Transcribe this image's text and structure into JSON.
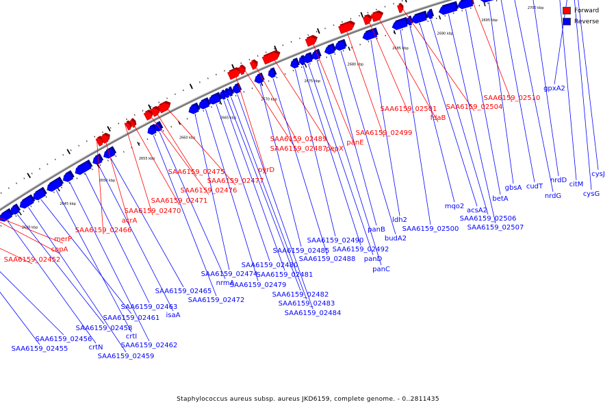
{
  "colors": {
    "forward": "#ff0000",
    "reverse": "#0000ff",
    "backbone": "#7a7a7a"
  },
  "legend": [
    {
      "label": "Forward",
      "color": "#ff0000"
    },
    {
      "label": "Reverse",
      "color": "#0000ff"
    }
  ],
  "caption": "Staphylococcus aureus subsp. aureus JKD6159, complete genome. - 0..2811435",
  "ticks": [
    "2635 kbp",
    "2640 kbp",
    "2645 kbp",
    "2650 kbp",
    "2655 kbp",
    "2660 kbp",
    "2665 kbp",
    "2670 kbp",
    "2675 kbp",
    "2680 kbp",
    "2685 kbp",
    "2690 kbp",
    "2695 kbp",
    "2700 kbp",
    "2705 kbp"
  ],
  "genes": [
    {
      "name": "SAA6159_02452",
      "strand": "forward"
    },
    {
      "name": "copA",
      "strand": "forward"
    },
    {
      "name": "merP",
      "strand": "forward"
    },
    {
      "name": "SAA6159_02466",
      "strand": "forward"
    },
    {
      "name": "acrA",
      "strand": "forward"
    },
    {
      "name": "SAA6159_02470",
      "strand": "forward"
    },
    {
      "name": "SAA6159_02471",
      "strand": "forward"
    },
    {
      "name": "SAA6159_02476",
      "strand": "forward"
    },
    {
      "name": "SAA6159_02475",
      "strand": "forward"
    },
    {
      "name": "SAA6159_02477",
      "strand": "forward"
    },
    {
      "name": "pyrD",
      "strand": "forward"
    },
    {
      "name": "SAA6159_02487",
      "strand": "forward"
    },
    {
      "name": "SAA6159_02489",
      "strand": "forward"
    },
    {
      "name": "pepX",
      "strand": "forward"
    },
    {
      "name": "panE",
      "strand": "forward"
    },
    {
      "name": "SAA6159_02499",
      "strand": "forward"
    },
    {
      "name": "SAA6159_02501",
      "strand": "forward"
    },
    {
      "name": "fdaB",
      "strand": "forward"
    },
    {
      "name": "SAA6159_02504",
      "strand": "forward"
    },
    {
      "name": "SAA6159_02510",
      "strand": "forward"
    },
    {
      "name": "gpxA2",
      "strand": "reverse"
    },
    {
      "name": "SAA6159_02455",
      "strand": "reverse"
    },
    {
      "name": "SAA6159_02456",
      "strand": "reverse"
    },
    {
      "name": "crtN",
      "strand": "reverse"
    },
    {
      "name": "SAA6159_02458",
      "strand": "reverse"
    },
    {
      "name": "SAA6159_02459",
      "strand": "reverse"
    },
    {
      "name": "SAA6159_02461",
      "strand": "reverse"
    },
    {
      "name": "crtI",
      "strand": "reverse"
    },
    {
      "name": "SAA6159_02462",
      "strand": "reverse"
    },
    {
      "name": "SAA6159_02463",
      "strand": "reverse"
    },
    {
      "name": "isaA",
      "strand": "reverse"
    },
    {
      "name": "SAA6159_02465",
      "strand": "reverse"
    },
    {
      "name": "SAA6159_02472",
      "strand": "reverse"
    },
    {
      "name": "nrmA",
      "strand": "reverse"
    },
    {
      "name": "SAA6159_02474",
      "strand": "reverse"
    },
    {
      "name": "SAA6159_02479",
      "strand": "reverse"
    },
    {
      "name": "SAA6159_02480",
      "strand": "reverse"
    },
    {
      "name": "SAA6159_02481",
      "strand": "reverse"
    },
    {
      "name": "SAA6159_02482",
      "strand": "reverse"
    },
    {
      "name": "SAA6159_02483",
      "strand": "reverse"
    },
    {
      "name": "SAA6159_02484",
      "strand": "reverse"
    },
    {
      "name": "SAA6159_02485",
      "strand": "reverse"
    },
    {
      "name": "SAA6159_02488",
      "strand": "reverse"
    },
    {
      "name": "SAA6159_02490",
      "strand": "reverse"
    },
    {
      "name": "SAA6159_02492",
      "strand": "reverse"
    },
    {
      "name": "panD",
      "strand": "reverse"
    },
    {
      "name": "panC",
      "strand": "reverse"
    },
    {
      "name": "panB",
      "strand": "reverse"
    },
    {
      "name": "budA2",
      "strand": "reverse"
    },
    {
      "name": "ldh2",
      "strand": "reverse"
    },
    {
      "name": "SAA6159_02500",
      "strand": "reverse"
    },
    {
      "name": "mqo2",
      "strand": "reverse"
    },
    {
      "name": "acsA2",
      "strand": "reverse"
    },
    {
      "name": "SAA6159_02506",
      "strand": "reverse"
    },
    {
      "name": "SAA6159_02507",
      "strand": "reverse"
    },
    {
      "name": "betA",
      "strand": "reverse"
    },
    {
      "name": "gbsA",
      "strand": "reverse"
    },
    {
      "name": "cudT",
      "strand": "reverse"
    },
    {
      "name": "nrdG",
      "strand": "reverse"
    },
    {
      "name": "nrdD",
      "strand": "reverse"
    },
    {
      "name": "citM",
      "strand": "reverse"
    },
    {
      "name": "cysG",
      "strand": "reverse"
    },
    {
      "name": "cysJ",
      "strand": "reverse"
    }
  ]
}
